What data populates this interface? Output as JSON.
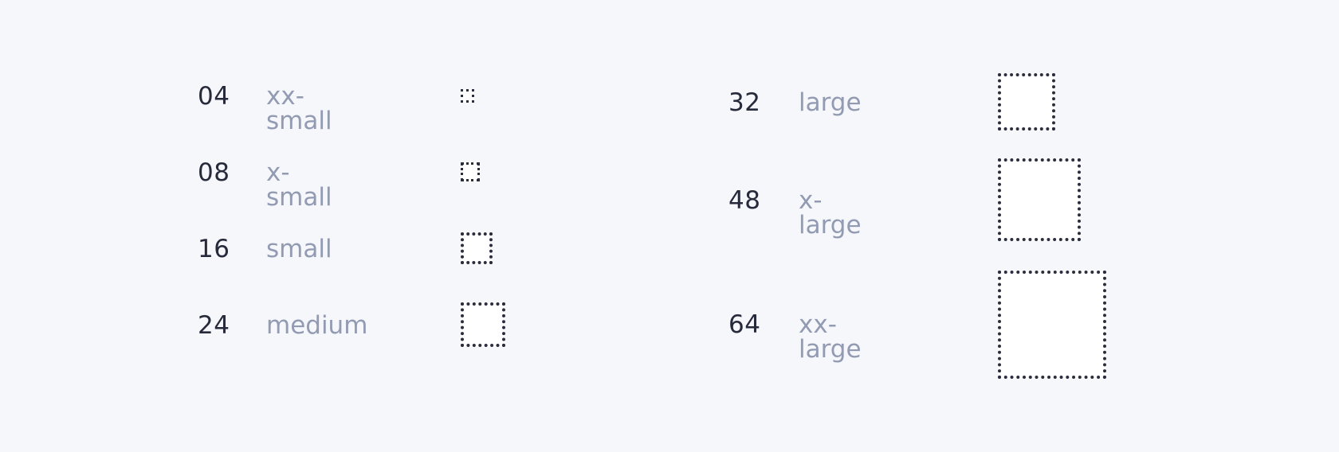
{
  "spacing_scale": {
    "left_column": [
      {
        "value": "04",
        "name": "xx-small"
      },
      {
        "value": "08",
        "name": "x-small"
      },
      {
        "value": "16",
        "name": "small"
      },
      {
        "value": "24",
        "name": "medium"
      }
    ],
    "right_column": [
      {
        "value": "32",
        "name": "large"
      },
      {
        "value": "48",
        "name": "x-large"
      },
      {
        "value": "64",
        "name": "xx-large"
      }
    ]
  },
  "colors": {
    "background": "#f5f7fb",
    "number": "#262a3a",
    "name": "#939bb3",
    "swatch_border": "#2a2e3e",
    "swatch_fill": "#ffffff"
  }
}
